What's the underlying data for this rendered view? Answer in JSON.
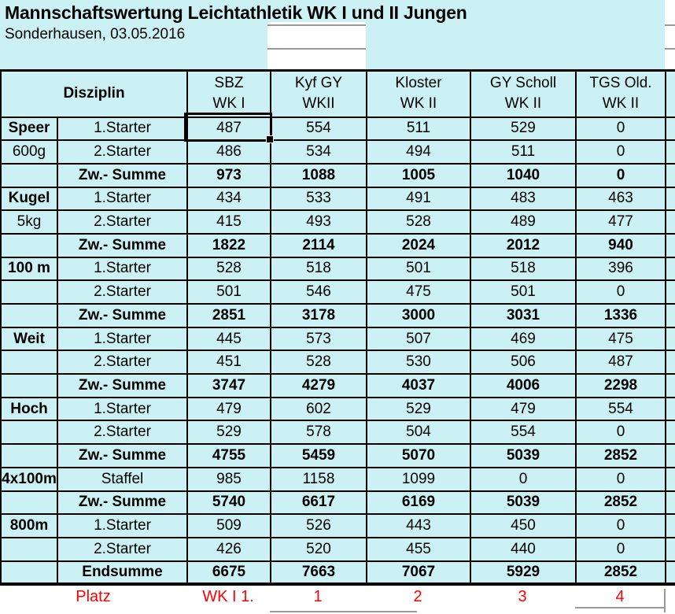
{
  "title": "Mannschaftswertung Leichtathletik WK I und II Jungen",
  "subtitle": "Sonderhausen, 03.05.2016",
  "colors": {
    "cell_bg": "#cbf1f4",
    "highlight_bg": "#2cc5c7",
    "grid_black": "#000000",
    "gridline_gray": "#999999",
    "rank_red": "#ff0000"
  },
  "selection": {
    "column": "SBZ",
    "row": "Speer 1.Starter",
    "value": "487"
  },
  "table": {
    "header": {
      "disziplin_label": "Disziplin",
      "columns": [
        {
          "name": "SBZ",
          "wk": "WK I",
          "highlight": true
        },
        {
          "name": "Kyf GY",
          "wk": "WKII",
          "highlight": false
        },
        {
          "name": "Kloster",
          "wk": "WK II",
          "highlight": false
        },
        {
          "name": "GY Scholl",
          "wk": "WK II",
          "highlight": false
        },
        {
          "name": "TGS Old.",
          "wk": "WK II",
          "highlight": false
        }
      ]
    },
    "rows": [
      {
        "disc": "Speer",
        "discStyle": "main",
        "label": "1.Starter",
        "type": "starter",
        "values": [
          487,
          554,
          511,
          529,
          0
        ]
      },
      {
        "disc": "600g",
        "discStyle": "sub",
        "label": "2.Starter",
        "type": "starter",
        "values": [
          486,
          534,
          494,
          511,
          0
        ]
      },
      {
        "disc": "",
        "discStyle": "sub",
        "label": "Zw.- Summe",
        "type": "sum",
        "values": [
          973,
          1088,
          1005,
          1040,
          0
        ]
      },
      {
        "disc": "Kugel",
        "discStyle": "main",
        "label": "1.Starter",
        "type": "starter",
        "values": [
          434,
          533,
          491,
          483,
          463
        ]
      },
      {
        "disc": "5kg",
        "discStyle": "sub",
        "label": "2.Starter",
        "type": "starter",
        "values": [
          415,
          493,
          528,
          489,
          477
        ]
      },
      {
        "disc": "",
        "discStyle": "sub",
        "label": "Zw.- Summe",
        "type": "sum",
        "values": [
          1822,
          2114,
          2024,
          2012,
          940
        ]
      },
      {
        "disc": "100 m",
        "discStyle": "main",
        "label": "1.Starter",
        "type": "starter",
        "values": [
          528,
          518,
          501,
          518,
          396
        ]
      },
      {
        "disc": "",
        "discStyle": "sub",
        "label": "2.Starter",
        "type": "starter",
        "values": [
          501,
          546,
          475,
          501,
          0
        ]
      },
      {
        "disc": "",
        "discStyle": "sub",
        "label": "Zw.- Summe",
        "type": "sum",
        "values": [
          2851,
          3178,
          3000,
          3031,
          1336
        ]
      },
      {
        "disc": "Weit",
        "discStyle": "main",
        "label": "1.Starter",
        "type": "starter",
        "values": [
          445,
          573,
          507,
          469,
          475
        ]
      },
      {
        "disc": "",
        "discStyle": "sub",
        "label": "2.Starter",
        "type": "starter",
        "values": [
          451,
          528,
          530,
          506,
          487
        ]
      },
      {
        "disc": "",
        "discStyle": "sub",
        "label": "Zw.- Summe",
        "type": "sum",
        "values": [
          3747,
          4279,
          4037,
          4006,
          2298
        ]
      },
      {
        "disc": "Hoch",
        "discStyle": "main",
        "label": "1.Starter",
        "type": "starter",
        "values": [
          479,
          602,
          529,
          479,
          554
        ]
      },
      {
        "disc": "",
        "discStyle": "sub",
        "label": "2.Starter",
        "type": "starter",
        "values": [
          529,
          578,
          504,
          554,
          0
        ]
      },
      {
        "disc": "",
        "discStyle": "sub",
        "label": "Zw.- Summe",
        "type": "sum",
        "values": [
          4755,
          5459,
          5070,
          5039,
          2852
        ]
      },
      {
        "disc": "4x100m",
        "discStyle": "main",
        "label": "Staffel",
        "type": "starter",
        "values": [
          985,
          1158,
          1099,
          0,
          0
        ]
      },
      {
        "disc": "",
        "discStyle": "sub",
        "label": "Zw.- Summe",
        "type": "sum",
        "values": [
          5740,
          6617,
          6169,
          5039,
          2852
        ]
      },
      {
        "disc": "800m",
        "discStyle": "main",
        "label": "1.Starter",
        "type": "starter",
        "values": [
          509,
          526,
          443,
          450,
          0
        ]
      },
      {
        "disc": "",
        "discStyle": "sub",
        "label": "2.Starter",
        "type": "starter",
        "values": [
          426,
          520,
          455,
          440,
          0
        ]
      },
      {
        "disc": "",
        "discStyle": "sub",
        "label": "Endsumme",
        "type": "end",
        "values": [
          6675,
          7663,
          7067,
          5929,
          2852
        ]
      }
    ],
    "platz_row": {
      "label": "Platz",
      "values": [
        "WK I 1.",
        "1",
        "2",
        "3",
        "4"
      ]
    }
  }
}
